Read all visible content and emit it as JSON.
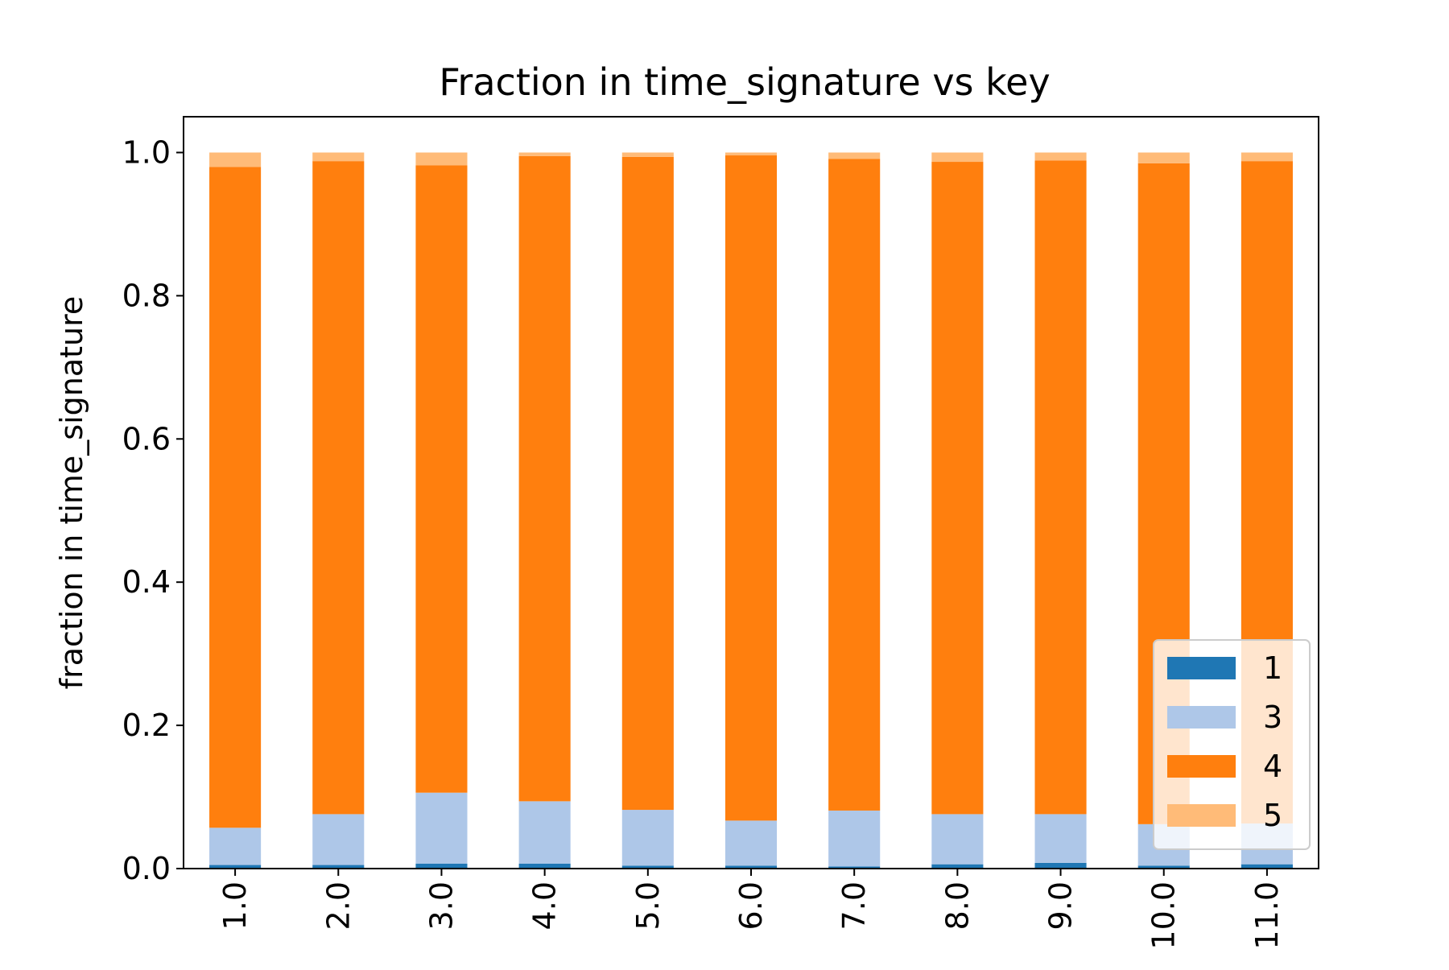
{
  "chart_data": {
    "type": "bar",
    "stacked": true,
    "title": "Fraction in time_signature vs key",
    "xlabel": "",
    "ylabel": "fraction in time_signature",
    "ylim": [
      0.0,
      1.05
    ],
    "yticks": [
      "0.0",
      "0.2",
      "0.4",
      "0.6",
      "0.8",
      "1.0"
    ],
    "categories": [
      "1.0",
      "2.0",
      "3.0",
      "4.0",
      "5.0",
      "6.0",
      "7.0",
      "8.0",
      "9.0",
      "10.0",
      "11.0"
    ],
    "series": [
      {
        "name": "1",
        "color": "#1f77b4",
        "values": [
          0.005,
          0.005,
          0.007,
          0.007,
          0.004,
          0.004,
          0.003,
          0.006,
          0.008,
          0.004,
          0.006
        ]
      },
      {
        "name": "3",
        "color": "#aec7e8",
        "values": [
          0.052,
          0.071,
          0.099,
          0.087,
          0.078,
          0.063,
          0.078,
          0.07,
          0.068,
          0.058,
          0.057
        ]
      },
      {
        "name": "4",
        "color": "#ff7f0e",
        "values": [
          0.923,
          0.912,
          0.876,
          0.901,
          0.912,
          0.929,
          0.91,
          0.911,
          0.913,
          0.923,
          0.925
        ]
      },
      {
        "name": "5",
        "color": "#ffbb78",
        "values": [
          0.02,
          0.012,
          0.018,
          0.005,
          0.006,
          0.004,
          0.009,
          0.013,
          0.011,
          0.015,
          0.012
        ]
      }
    ],
    "grid": false,
    "legend": {
      "position": "lower-right",
      "entries": [
        "1",
        "3",
        "4",
        "5"
      ]
    }
  }
}
